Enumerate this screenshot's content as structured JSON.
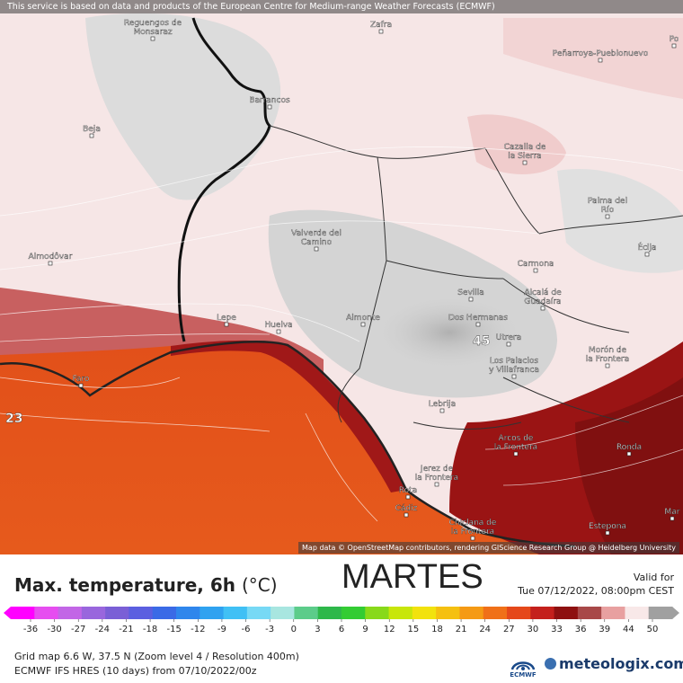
{
  "header": {
    "notice": "This service is based on data and products of the European Centre for Medium-range Weather Forecasts (ECMWF)"
  },
  "map": {
    "attribution": "Map data © OpenStreetMap contributors, rendering GIScience Research Group @ Heidelberg University",
    "extreme_labels": [
      {
        "value": "45"
      },
      {
        "value": "23"
      }
    ],
    "cities": [
      {
        "name": "Reguengos de Monsaraz"
      },
      {
        "name": "Zafra"
      },
      {
        "name": "Peñarroya-Pueblonuevo"
      },
      {
        "name": "Barrancos"
      },
      {
        "name": "Beja"
      },
      {
        "name": "Cazalla de la Sierra"
      },
      {
        "name": "Palma del Río"
      },
      {
        "name": "Valverde del Camino"
      },
      {
        "name": "Écija"
      },
      {
        "name": "Almodôvar"
      },
      {
        "name": "Carmona"
      },
      {
        "name": "Sevilla"
      },
      {
        "name": "Alcalá de Guadaíra"
      },
      {
        "name": "Lepe"
      },
      {
        "name": "Almonte"
      },
      {
        "name": "Dos Hermanas"
      },
      {
        "name": "Huelva"
      },
      {
        "name": "Utrera"
      },
      {
        "name": "Morón de la Frontera"
      },
      {
        "name": "Los Palacios y Villafranca"
      },
      {
        "name": "Faro"
      },
      {
        "name": "Lebrija"
      },
      {
        "name": "Arcos de la Frontera"
      },
      {
        "name": "Ronda"
      },
      {
        "name": "Jerez de la Frontera"
      },
      {
        "name": "Rota"
      },
      {
        "name": "Cádiz"
      },
      {
        "name": "Chiclana de la Frontera"
      },
      {
        "name": "Estepona"
      },
      {
        "name": "Mar"
      },
      {
        "name": "Po"
      }
    ]
  },
  "legend": {
    "title": "Max. temperature, 6h",
    "unit": "(°C)",
    "day": "MARTES",
    "valid_label": "Valid for",
    "valid_time": "Tue 07/12/2022, 08:00pm CEST",
    "ticks": [
      "-36",
      "-30",
      "-27",
      "-24",
      "-21",
      "-18",
      "-15",
      "-12",
      "-9",
      "-6",
      "-3",
      "0",
      "3",
      "6",
      "9",
      "12",
      "15",
      "18",
      "21",
      "24",
      "27",
      "30",
      "33",
      "36",
      "39",
      "44",
      "50"
    ],
    "colors": [
      "#ff00ff",
      "#e64df0",
      "#c266e6",
      "#9966dd",
      "#7a5fd6",
      "#5b5fe0",
      "#3a6ae6",
      "#2f86ec",
      "#2fa2f0",
      "#40c0f5",
      "#77d9f5",
      "#a8e6e0",
      "#5ccc8a",
      "#2eb84a",
      "#33cc33",
      "#88d91a",
      "#c8e60a",
      "#f2e20d",
      "#f5c010",
      "#f59a14",
      "#f07018",
      "#e5481a",
      "#c4201c",
      "#8e1010",
      "#a84848",
      "#e8a0a0",
      "#f8e8e8",
      "#a0a0a0"
    ]
  },
  "footer": {
    "grid_info": "Grid map 6.6 W, 37.5 N (Zoom level 4 / Resolution 400m)",
    "model_info": "ECMWF IFS HRES (10 days) from 07/10/2022/00z",
    "ecmwf_label": "ECMWF",
    "brand": "meteologix.com"
  }
}
